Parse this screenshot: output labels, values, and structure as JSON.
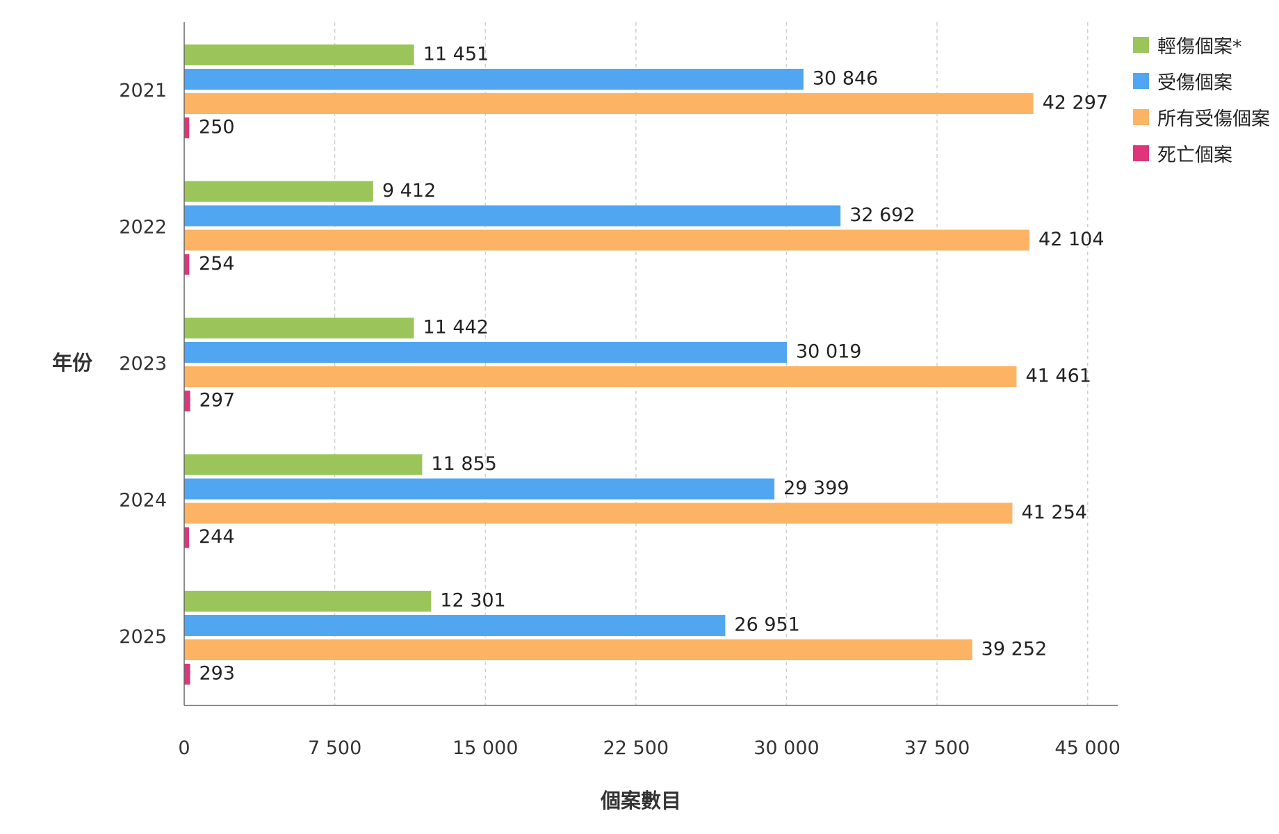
{
  "chart_data": {
    "type": "bar",
    "orientation": "horizontal",
    "categories": [
      "2021",
      "2022",
      "2023",
      "2024",
      "2025"
    ],
    "series": [
      {
        "name": "輕傷個案*",
        "color": "#9BC55A",
        "values": [
          11451,
          9412,
          11442,
          11855,
          12301
        ],
        "labels": [
          "11 451",
          "9 412",
          "11 442",
          "11 855",
          "12 301"
        ]
      },
      {
        "name": "受傷個案",
        "color": "#51A6F2",
        "values": [
          30846,
          32692,
          30019,
          29399,
          26951
        ],
        "labels": [
          "30 846",
          "32 692",
          "30 019",
          "29 399",
          "26 951"
        ]
      },
      {
        "name": "所有受傷個案",
        "color": "#FCB464",
        "values": [
          42297,
          42104,
          41461,
          41254,
          39252
        ],
        "labels": [
          "42 297",
          "42 104",
          "41 461",
          "41 254",
          "39 252"
        ]
      },
      {
        "name": "死亡個案",
        "color": "#E0357A",
        "values": [
          250,
          254,
          297,
          244,
          293
        ],
        "labels": [
          "250",
          "254",
          "297",
          "244",
          "293"
        ]
      }
    ],
    "xlabel": "個案數目",
    "ylabel": "年份",
    "xlim": [
      0,
      46500
    ],
    "xticks": [
      0,
      7500,
      15000,
      22500,
      30000,
      37500,
      45000
    ],
    "xtick_labels": [
      "0",
      "7 500",
      "15 000",
      "22 500",
      "30 000",
      "37 500",
      "45 000"
    ],
    "grid": "vertical dashed",
    "legend_position": "top-right"
  }
}
